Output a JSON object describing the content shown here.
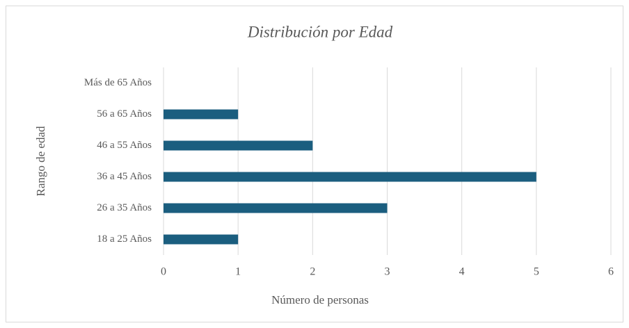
{
  "chart_data": {
    "type": "bar",
    "orientation": "horizontal",
    "title": "Distribución por Edad",
    "x_label": "Número de personas",
    "y_label": "Rango de edad",
    "categories": [
      "18 a 25 Años",
      "26 a 35 Años",
      "36 a 45 Años",
      "46 a 55 Años",
      "56 a 65 Años",
      "Más de 65 Años"
    ],
    "values": [
      1,
      3,
      5,
      2,
      1,
      0
    ],
    "color": "#1b5e7f",
    "xlim": [
      0,
      6
    ],
    "xticks": [
      0,
      1,
      2,
      3,
      4,
      5,
      6
    ],
    "grid": true
  }
}
